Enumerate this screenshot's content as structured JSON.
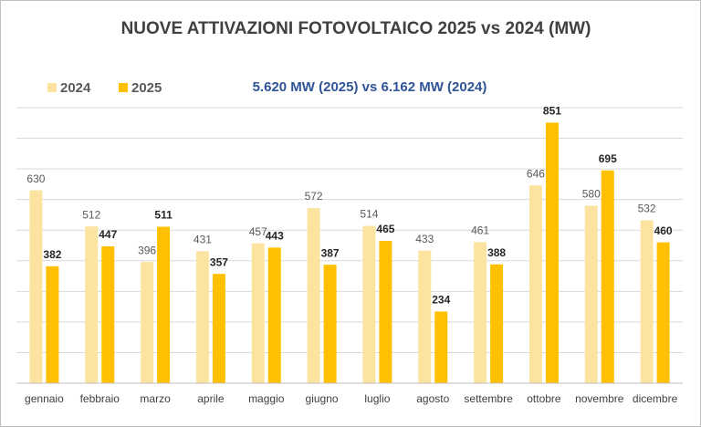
{
  "chart_data": {
    "type": "bar",
    "title": "NUOVE ATTIVAZIONI FOTOVOLTAICO 2025 vs 2024 (MW)",
    "subtitle": "5.620 MW (2025) vs 6.162 MW (2024)",
    "categories": [
      "gennaio",
      "febbraio",
      "marzo",
      "aprile",
      "maggio",
      "giugno",
      "luglio",
      "agosto",
      "settembre",
      "ottobre",
      "novembre",
      "dicembre"
    ],
    "series": [
      {
        "name": "2024",
        "color": "#fce4a0",
        "values": [
          630,
          512,
          396,
          431,
          457,
          572,
          514,
          433,
          461,
          646,
          580,
          532
        ]
      },
      {
        "name": "2025",
        "color": "#ffc000",
        "values": [
          382,
          447,
          511,
          357,
          443,
          387,
          465,
          234,
          388,
          851,
          695,
          460
        ]
      }
    ],
    "ylim": [
      0,
      900
    ],
    "yticks": [
      0,
      100,
      200,
      300,
      400,
      500,
      600,
      700,
      800,
      900
    ],
    "grid": true,
    "legend": "top-left"
  }
}
